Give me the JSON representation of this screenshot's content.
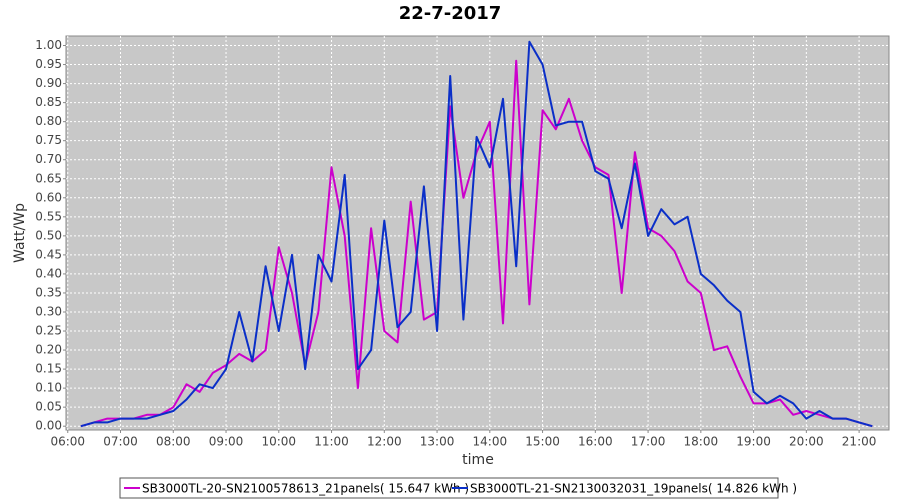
{
  "chart_data": {
    "type": "line",
    "title": "22-7-2017",
    "x_label": "time",
    "y_label": "Watt/Wp",
    "x": [
      "06:15",
      "06:30",
      "06:45",
      "07:00",
      "07:15",
      "07:30",
      "07:45",
      "08:00",
      "08:15",
      "08:30",
      "08:45",
      "09:00",
      "09:15",
      "09:30",
      "09:45",
      "10:00",
      "10:15",
      "10:30",
      "10:45",
      "11:00",
      "11:15",
      "11:30",
      "11:45",
      "12:00",
      "12:15",
      "12:30",
      "12:45",
      "13:00",
      "13:15",
      "13:30",
      "13:45",
      "14:00",
      "14:15",
      "14:30",
      "14:45",
      "15:00",
      "15:15",
      "15:30",
      "15:45",
      "16:00",
      "16:15",
      "16:30",
      "16:45",
      "17:00",
      "17:15",
      "17:30",
      "17:45",
      "18:00",
      "18:15",
      "18:30",
      "18:45",
      "19:00",
      "19:15",
      "19:30",
      "19:45",
      "20:00",
      "20:15",
      "20:30",
      "20:45",
      "21:00",
      "21:15"
    ],
    "series": [
      {
        "name": "SB3000TL-20-SN2100578613_21panels( 15.647 kWh )",
        "color": "#cc00cc",
        "values": [
          0.0,
          0.01,
          0.02,
          0.02,
          0.02,
          0.03,
          0.03,
          0.05,
          0.11,
          0.09,
          0.14,
          0.16,
          0.19,
          0.17,
          0.2,
          0.47,
          0.35,
          0.16,
          0.3,
          0.68,
          0.5,
          0.1,
          0.52,
          0.25,
          0.22,
          0.59,
          0.28,
          0.3,
          0.84,
          0.6,
          0.72,
          0.8,
          0.27,
          0.96,
          0.32,
          0.83,
          0.78,
          0.86,
          0.75,
          0.68,
          0.66,
          0.35,
          0.72,
          0.52,
          0.5,
          0.46,
          0.38,
          0.35,
          0.2,
          0.21,
          0.13,
          0.06,
          0.06,
          0.07,
          0.03,
          0.04,
          0.03,
          0.02,
          0.02,
          0.01,
          0.0
        ]
      },
      {
        "name": "SB3000TL-21-SN2130032031_19panels( 14.826 kWh )",
        "color": "#0a2fc8",
        "values": [
          0.0,
          0.01,
          0.01,
          0.02,
          0.02,
          0.02,
          0.03,
          0.04,
          0.07,
          0.11,
          0.1,
          0.15,
          0.3,
          0.17,
          0.42,
          0.25,
          0.45,
          0.15,
          0.45,
          0.38,
          0.66,
          0.15,
          0.2,
          0.54,
          0.26,
          0.3,
          0.63,
          0.25,
          0.92,
          0.28,
          0.76,
          0.68,
          0.86,
          0.42,
          1.01,
          0.95,
          0.79,
          0.8,
          0.8,
          0.67,
          0.65,
          0.52,
          0.69,
          0.5,
          0.57,
          0.53,
          0.55,
          0.4,
          0.37,
          0.33,
          0.3,
          0.09,
          0.06,
          0.08,
          0.06,
          0.02,
          0.04,
          0.02,
          0.02,
          0.01,
          0.0
        ]
      }
    ],
    "xlim": [
      "05:58",
      "21:34"
    ],
    "xticks": [
      "06:00",
      "07:00",
      "08:00",
      "09:00",
      "10:00",
      "11:00",
      "12:00",
      "13:00",
      "14:00",
      "15:00",
      "16:00",
      "17:00",
      "18:00",
      "19:00",
      "20:00",
      "21:00"
    ],
    "ylim": [
      -0.01,
      1.025
    ],
    "yticks": [
      {
        "value": 0,
        "label": "0.00"
      },
      {
        "value": 0.05,
        "label": "0.05"
      },
      {
        "value": 0.1,
        "label": "0.10"
      },
      {
        "value": 0.15,
        "label": "0.15"
      },
      {
        "value": 0.2,
        "label": "0.20"
      },
      {
        "value": 0.25,
        "label": "0.25"
      },
      {
        "value": 0.3,
        "label": "0.30"
      },
      {
        "value": 0.35,
        "label": "0.35"
      },
      {
        "value": 0.4,
        "label": "0.40"
      },
      {
        "value": 0.45,
        "label": "0.45"
      },
      {
        "value": 0.5,
        "label": "0.50"
      },
      {
        "value": 0.55,
        "label": "0.55"
      },
      {
        "value": 0.6,
        "label": "0.60"
      },
      {
        "value": 0.65,
        "label": "0.65"
      },
      {
        "value": 0.7,
        "label": "0.70"
      },
      {
        "value": 0.75,
        "label": "0.75"
      },
      {
        "value": 0.8,
        "label": "0.80"
      },
      {
        "value": 0.85,
        "label": "0.85"
      },
      {
        "value": 0.9,
        "label": "0.90"
      },
      {
        "value": 0.95,
        "label": "0.95"
      },
      {
        "value": 1,
        "label": "1.00"
      }
    ],
    "grid": true,
    "legend": "bottom"
  }
}
